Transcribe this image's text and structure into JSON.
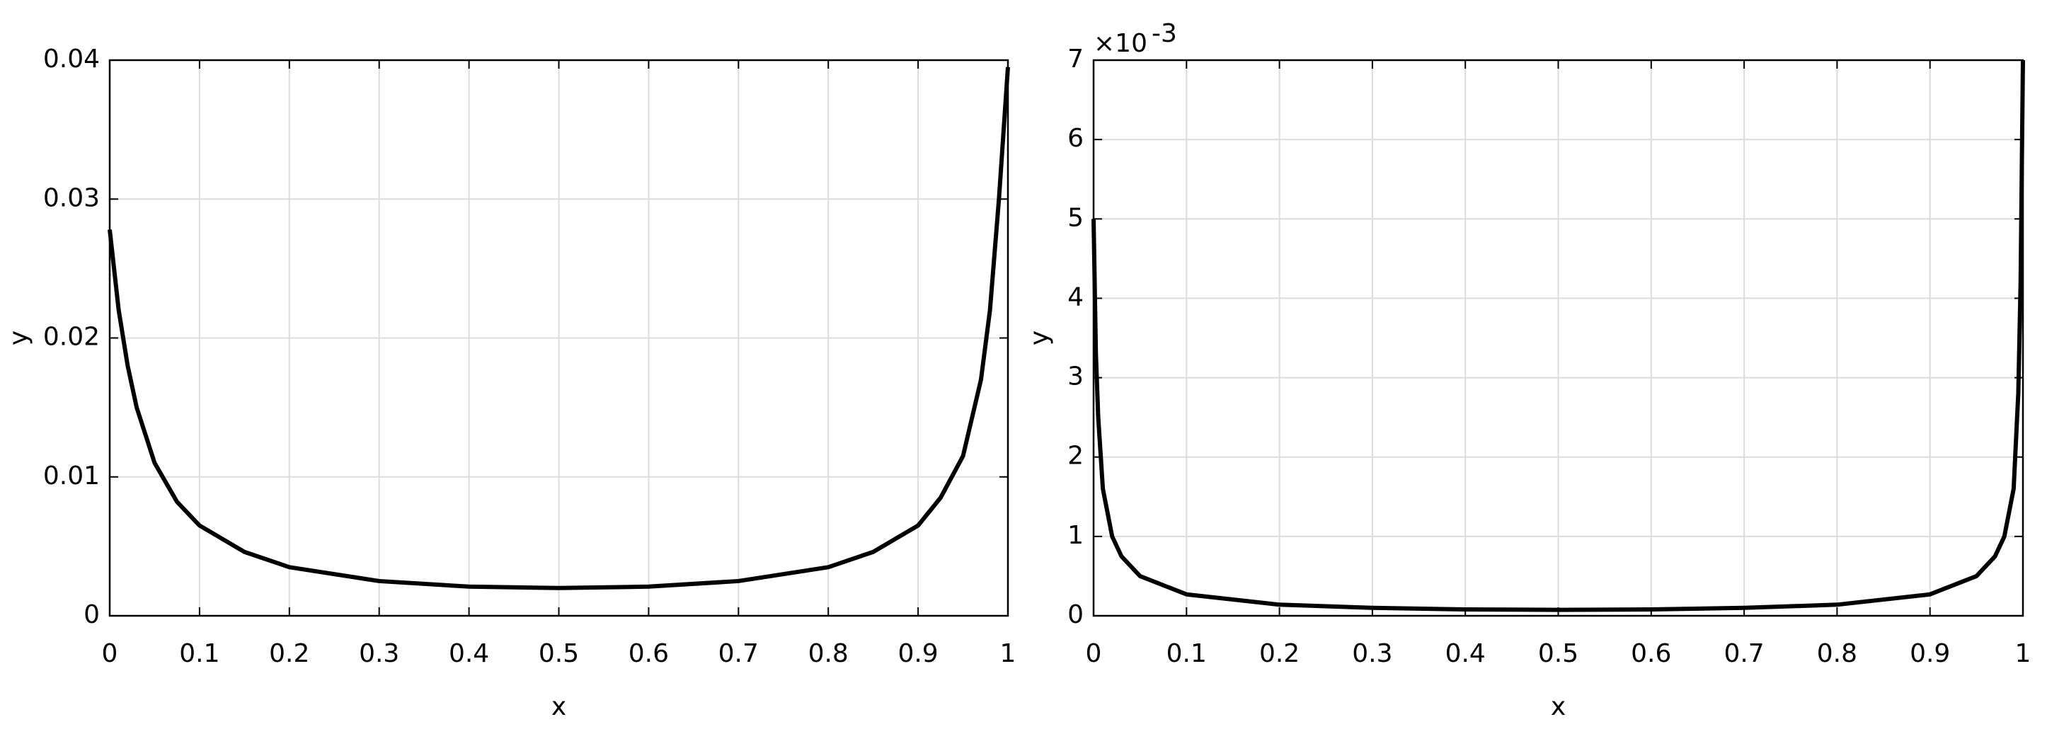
{
  "chart_data": [
    {
      "type": "line",
      "xlabel": "x",
      "ylabel": "y",
      "x": [
        0,
        0.01,
        0.02,
        0.03,
        0.05,
        0.075,
        0.1,
        0.15,
        0.2,
        0.3,
        0.4,
        0.5,
        0.6,
        0.7,
        0.8,
        0.85,
        0.9,
        0.925,
        0.95,
        0.97,
        0.98,
        0.99,
        1
      ],
      "values": [
        0.0278,
        0.022,
        0.018,
        0.015,
        0.011,
        0.0082,
        0.0065,
        0.0046,
        0.0035,
        0.0025,
        0.0021,
        0.002,
        0.0021,
        0.0025,
        0.0035,
        0.0046,
        0.0065,
        0.0085,
        0.0115,
        0.017,
        0.022,
        0.03,
        0.0395
      ],
      "color": "#000000",
      "xlim": [
        0,
        1
      ],
      "ylim": [
        0,
        0.04
      ],
      "xticks": [
        0,
        0.1,
        0.2,
        0.3,
        0.4,
        0.5,
        0.6,
        0.7,
        0.8,
        0.9,
        1
      ],
      "yticks": [
        0,
        0.01,
        0.02,
        0.03,
        0.04
      ],
      "grid": true
    },
    {
      "type": "line",
      "xlabel": "x",
      "ylabel": "y",
      "y_multiplier": "×10",
      "y_multiplier_exponent": "-3",
      "x": [
        0,
        0.0025,
        0.005,
        0.01,
        0.02,
        0.03,
        0.05,
        0.1,
        0.2,
        0.3,
        0.4,
        0.5,
        0.6,
        0.7,
        0.8,
        0.9,
        0.95,
        0.97,
        0.98,
        0.99,
        0.995,
        0.9975,
        1
      ],
      "values": [
        5.0,
        3.3,
        2.5,
        1.6,
        1.0,
        0.75,
        0.5,
        0.27,
        0.14,
        0.1,
        0.08,
        0.075,
        0.08,
        0.1,
        0.14,
        0.27,
        0.5,
        0.75,
        1.0,
        1.6,
        2.8,
        4.2,
        7
      ],
      "color": "#000000",
      "xlim": [
        0,
        1
      ],
      "ylim": [
        0,
        7
      ],
      "xticks": [
        0,
        0.1,
        0.2,
        0.3,
        0.4,
        0.5,
        0.6,
        0.7,
        0.8,
        0.9,
        1
      ],
      "yticks": [
        0,
        1,
        2,
        3,
        4,
        5,
        6,
        7
      ],
      "grid": true
    }
  ]
}
